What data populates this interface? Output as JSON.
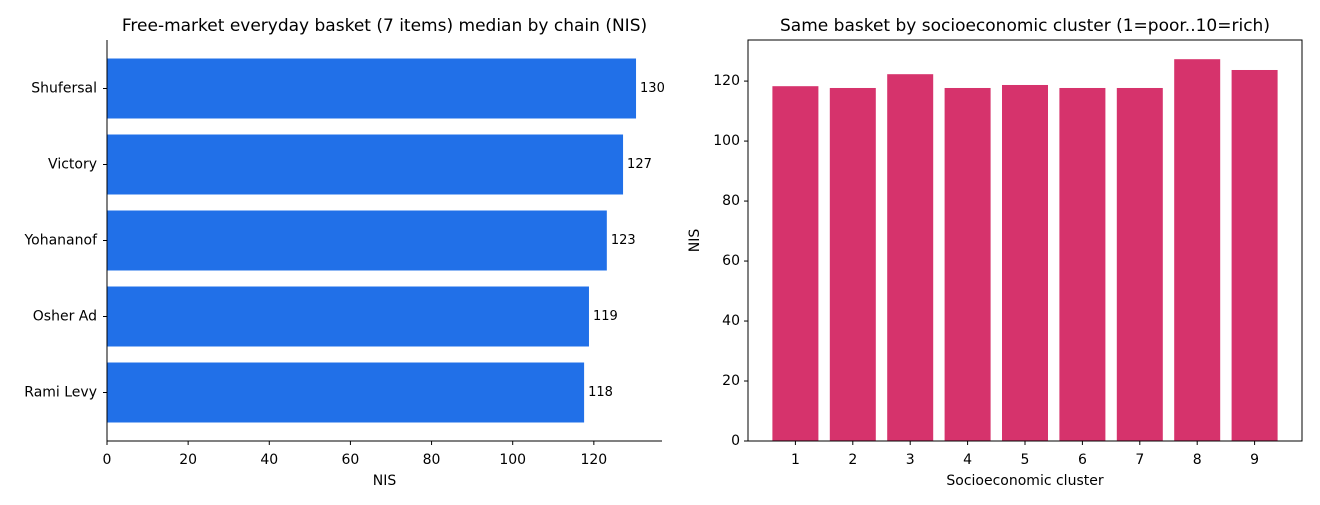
{
  "chart_data": [
    {
      "type": "barh",
      "title": "Free-market everyday basket (7 items) median by chain (NIS)",
      "categories": [
        "Shufersal",
        "Victory",
        "Yohananof",
        "Osher Ad",
        "Rami Levy"
      ],
      "values": [
        130.4,
        127.2,
        123.2,
        118.8,
        117.6
      ],
      "value_labels": [
        "130",
        "127",
        "123",
        "119",
        "118"
      ],
      "color": "#2170e8",
      "xlabel": "NIS",
      "xlim": [
        0,
        136.8
      ],
      "xticks": [
        0,
        20,
        40,
        60,
        80,
        100,
        120
      ]
    },
    {
      "type": "bar",
      "title": "Same basket by socioeconomic cluster (1=poor..10=rich)",
      "categories": [
        "1",
        "2",
        "3",
        "4",
        "5",
        "6",
        "7",
        "8",
        "9"
      ],
      "values": [
        118.3,
        117.7,
        122.3,
        117.7,
        118.7,
        117.7,
        117.7,
        127.3,
        123.7
      ],
      "color": "#d6336c",
      "xlabel": "Socioeconomic cluster",
      "ylabel": "NIS",
      "ylim": [
        0,
        133.7
      ],
      "yticks": [
        0,
        20,
        40,
        60,
        80,
        100,
        120
      ]
    }
  ]
}
